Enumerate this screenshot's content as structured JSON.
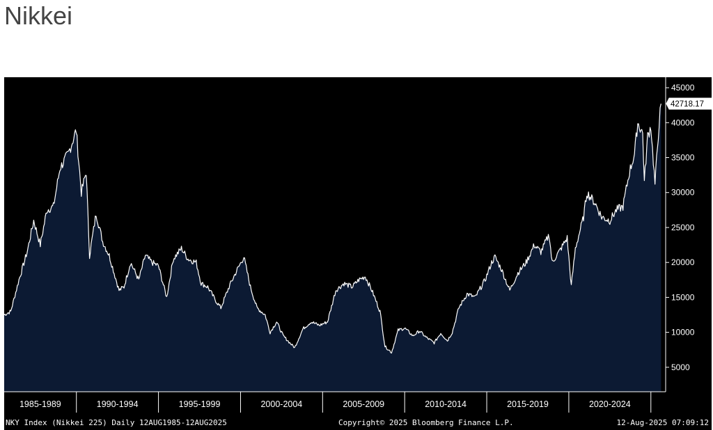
{
  "page": {
    "title": "Nikkei"
  },
  "footer": {
    "left": "NKY Index (Nikkei 225)  Daily 12AUG1985-12AUG2025",
    "center": "Copyright© 2025 Bloomberg Finance L.P.",
    "right": "12-Aug-2025 07:09:12"
  },
  "chart_data": {
    "type": "area",
    "title": "",
    "xlabel": "",
    "ylabel": "",
    "last_value_label": "42718.17",
    "x_categories": [
      "1985-1989",
      "1990-1994",
      "1995-1999",
      "2000-2004",
      "2005-2009",
      "2010-2014",
      "2015-2019",
      "2020-2024"
    ],
    "yticks": [
      5000,
      10000,
      15000,
      20000,
      25000,
      30000,
      35000,
      40000,
      45000
    ],
    "ylim": [
      1500,
      46500
    ],
    "xlim": [
      1985.6,
      2025.9
    ],
    "y_axis_side": "right",
    "grid": false,
    "colors": {
      "background": "#000000",
      "fill": "#0c1a33",
      "line": "#ffffff",
      "text": "#ffffff"
    },
    "series": [
      {
        "x": [
          1985.6,
          1986.0,
          1986.5,
          1987.0,
          1987.4,
          1987.8,
          1988.2,
          1988.6,
          1989.0,
          1989.5,
          1989.99,
          1990.3,
          1990.6,
          1990.8,
          1991.2,
          1991.6,
          1992.0,
          1992.6,
          1992.9,
          1993.3,
          1993.8,
          1994.2,
          1994.6,
          1995.0,
          1995.5,
          1995.9,
          1996.4,
          1996.8,
          1997.3,
          1997.6,
          1998.0,
          1998.5,
          1998.8,
          1999.3,
          1999.7,
          2000.2,
          2000.6,
          2001.0,
          2001.5,
          2001.8,
          2002.2,
          2002.6,
          2003.0,
          2003.3,
          2003.8,
          2004.3,
          2004.8,
          2005.3,
          2005.8,
          2006.3,
          2006.8,
          2007.2,
          2007.6,
          2008.0,
          2008.5,
          2008.8,
          2009.2,
          2009.6,
          2010.0,
          2010.5,
          2010.9,
          2011.3,
          2011.8,
          2012.2,
          2012.6,
          2012.9,
          2013.3,
          2013.8,
          2014.3,
          2014.9,
          2015.3,
          2015.5,
          2015.9,
          2016.4,
          2016.9,
          2017.4,
          2017.9,
          2018.3,
          2018.8,
          2018.98,
          2019.4,
          2019.9,
          2020.15,
          2020.4,
          2020.9,
          2021.1,
          2021.6,
          2022.0,
          2022.5,
          2022.9,
          2023.3,
          2023.7,
          2024.0,
          2024.2,
          2024.5,
          2024.6,
          2024.8,
          2025.0,
          2025.25,
          2025.5,
          2025.62
        ],
        "y": [
          12500,
          13000,
          17500,
          21500,
          26000,
          22500,
          27500,
          28000,
          33500,
          35500,
          38915,
          30000,
          33000,
          21000,
          27000,
          23000,
          21000,
          16000,
          16500,
          20000,
          17500,
          21000,
          20000,
          19500,
          15000,
          20500,
          22000,
          20500,
          20000,
          17000,
          16500,
          14500,
          13500,
          16500,
          18500,
          20800,
          16500,
          13500,
          12500,
          10000,
          11500,
          9500,
          8500,
          7800,
          10500,
          11500,
          11000,
          11500,
          16000,
          17000,
          16500,
          17500,
          18000,
          16000,
          13000,
          8000,
          7100,
          10300,
          10600,
          9500,
          10200,
          9300,
          8500,
          9900,
          8800,
          10000,
          13500,
          15500,
          15000,
          17500,
          20000,
          20800,
          19000,
          16000,
          18500,
          20000,
          22500,
          21500,
          24000,
          20000,
          21500,
          23500,
          16600,
          22000,
          26500,
          30000,
          28500,
          26500,
          26000,
          27500,
          28000,
          33000,
          35500,
          40000,
          38500,
          31500,
          38000,
          39500,
          31200,
          40000,
          42718
        ]
      }
    ]
  }
}
